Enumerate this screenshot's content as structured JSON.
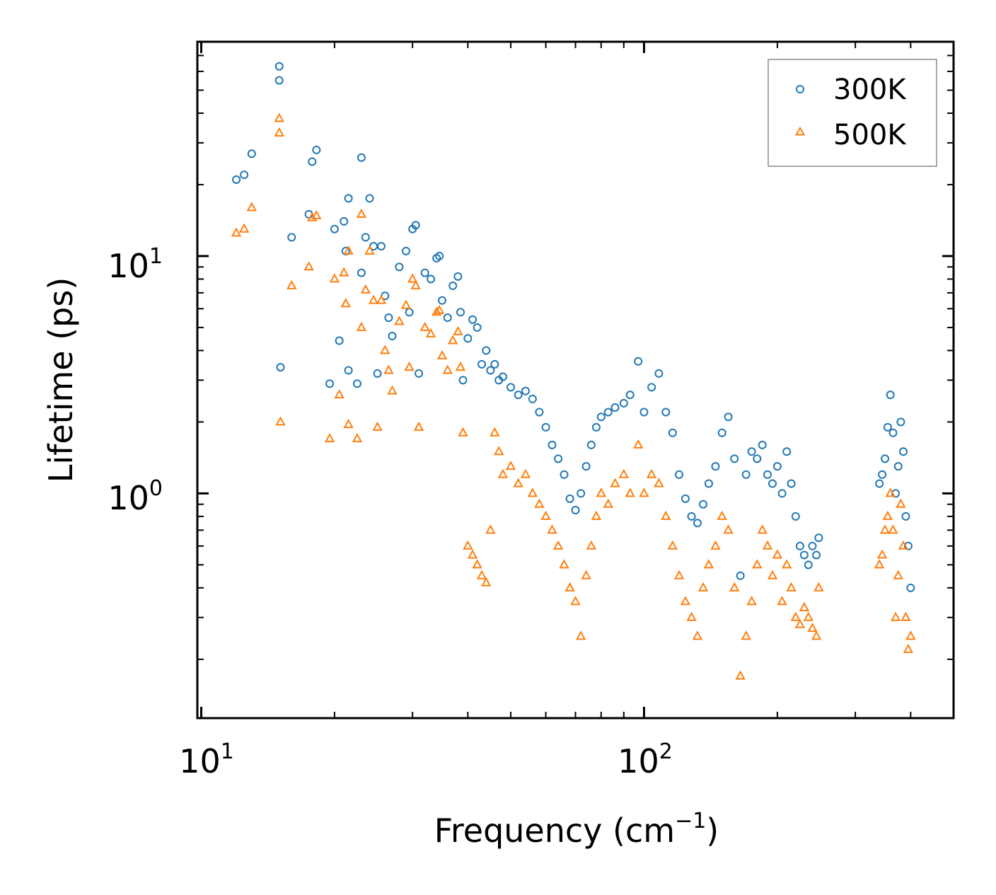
{
  "chart_data": {
    "type": "scatter",
    "title": "",
    "xlabel": "Frequency (cm",
    "xlabel_sup": "−1",
    "xlabel_end": ")",
    "ylabel": "Lifetime (ps)",
    "xscale": "log",
    "yscale": "log",
    "xlim": [
      9.8,
      500
    ],
    "ylim": [
      0.113,
      80
    ],
    "xticks": [
      {
        "base": "10",
        "exp": "1",
        "value": 10
      },
      {
        "base": "10",
        "exp": "2",
        "value": 100
      }
    ],
    "yticks": [
      {
        "base": "10",
        "exp": "0",
        "value": 1
      },
      {
        "base": "10",
        "exp": "1",
        "value": 10
      }
    ],
    "legend_position": "top-right",
    "series": [
      {
        "name": "300K",
        "marker": "circle",
        "color": "#1f77b4",
        "points": [
          [
            12.0,
            21
          ],
          [
            12.5,
            22
          ],
          [
            13.0,
            27
          ],
          [
            15.0,
            63
          ],
          [
            15.0,
            55
          ],
          [
            15.1,
            3.4
          ],
          [
            16.0,
            12
          ],
          [
            17.5,
            15
          ],
          [
            17.8,
            25
          ],
          [
            18.2,
            28
          ],
          [
            19.5,
            2.9
          ],
          [
            20.0,
            13
          ],
          [
            20.5,
            4.4
          ],
          [
            21.0,
            14
          ],
          [
            21.2,
            10.5
          ],
          [
            21.5,
            17.5
          ],
          [
            21.5,
            3.3
          ],
          [
            22.5,
            2.9
          ],
          [
            23.0,
            8.5
          ],
          [
            23.0,
            26
          ],
          [
            23.5,
            12
          ],
          [
            24.0,
            17.5
          ],
          [
            24.5,
            11
          ],
          [
            25.0,
            3.2
          ],
          [
            25.5,
            11
          ],
          [
            26.0,
            6.8
          ],
          [
            26.5,
            5.5
          ],
          [
            27.0,
            4.6
          ],
          [
            28.0,
            9
          ],
          [
            29.0,
            10.5
          ],
          [
            29.5,
            5.8
          ],
          [
            30.0,
            13
          ],
          [
            30.5,
            13.5
          ],
          [
            31.0,
            3.2
          ],
          [
            32.0,
            8.5
          ],
          [
            33.0,
            8
          ],
          [
            34.0,
            9.8
          ],
          [
            34.5,
            10
          ],
          [
            35.0,
            6.5
          ],
          [
            36.0,
            5.5
          ],
          [
            37.0,
            7.5
          ],
          [
            38.0,
            8.2
          ],
          [
            38.5,
            5.8
          ],
          [
            39.0,
            3.0
          ],
          [
            40.0,
            4.5
          ],
          [
            41.0,
            5.4
          ],
          [
            42.0,
            5.0
          ],
          [
            43.0,
            3.5
          ],
          [
            44.0,
            4.0
          ],
          [
            45.0,
            3.3
          ],
          [
            46.0,
            3.5
          ],
          [
            47.0,
            3.0
          ],
          [
            48.0,
            3.1
          ],
          [
            50.0,
            2.8
          ],
          [
            52.0,
            2.6
          ],
          [
            54.0,
            2.7
          ],
          [
            56.0,
            2.5
          ],
          [
            58.0,
            2.2
          ],
          [
            60.0,
            1.9
          ],
          [
            62.0,
            1.6
          ],
          [
            64.0,
            1.4
          ],
          [
            66.0,
            1.2
          ],
          [
            68.0,
            0.95
          ],
          [
            70.0,
            0.85
          ],
          [
            72.0,
            1.0
          ],
          [
            74.0,
            1.3
          ],
          [
            76.0,
            1.6
          ],
          [
            78.0,
            1.9
          ],
          [
            80.0,
            2.1
          ],
          [
            83.0,
            2.2
          ],
          [
            86.0,
            2.3
          ],
          [
            90.0,
            2.4
          ],
          [
            93.0,
            2.6
          ],
          [
            97.0,
            3.6
          ],
          [
            100.0,
            2.2
          ],
          [
            104.0,
            2.8
          ],
          [
            108.0,
            3.2
          ],
          [
            112.0,
            2.2
          ],
          [
            116.0,
            1.8
          ],
          [
            120.0,
            1.2
          ],
          [
            124.0,
            0.95
          ],
          [
            128.0,
            0.8
          ],
          [
            132.0,
            0.75
          ],
          [
            136.0,
            0.9
          ],
          [
            140.0,
            1.1
          ],
          [
            145.0,
            1.3
          ],
          [
            150.0,
            1.8
          ],
          [
            155.0,
            2.1
          ],
          [
            160.0,
            1.4
          ],
          [
            165.0,
            0.45
          ],
          [
            170.0,
            1.2
          ],
          [
            175.0,
            1.5
          ],
          [
            180.0,
            1.4
          ],
          [
            185.0,
            1.6
          ],
          [
            190.0,
            1.2
          ],
          [
            195.0,
            1.1
          ],
          [
            200.0,
            1.3
          ],
          [
            205.0,
            1.0
          ],
          [
            210.0,
            1.5
          ],
          [
            215.0,
            1.1
          ],
          [
            220.0,
            0.8
          ],
          [
            225.0,
            0.6
          ],
          [
            230.0,
            0.55
          ],
          [
            235.0,
            0.5
          ],
          [
            240.0,
            0.6
          ],
          [
            245.0,
            0.55
          ],
          [
            248.0,
            0.65
          ],
          [
            340.0,
            1.1
          ],
          [
            345.0,
            1.2
          ],
          [
            350.0,
            1.4
          ],
          [
            355.0,
            1.9
          ],
          [
            360.0,
            2.6
          ],
          [
            365.0,
            1.8
          ],
          [
            370.0,
            1.0
          ],
          [
            375.0,
            1.3
          ],
          [
            380.0,
            2.0
          ],
          [
            385.0,
            1.5
          ],
          [
            390.0,
            0.8
          ],
          [
            395.0,
            0.6
          ],
          [
            400.0,
            0.4
          ]
        ]
      },
      {
        "name": "500K",
        "marker": "triangle",
        "color": "#ff7f0e",
        "points": [
          [
            12.0,
            12.5
          ],
          [
            12.5,
            13
          ],
          [
            13.0,
            16
          ],
          [
            15.0,
            38
          ],
          [
            15.0,
            33
          ],
          [
            15.1,
            2.0
          ],
          [
            16.0,
            7.5
          ],
          [
            17.5,
            9
          ],
          [
            17.8,
            14.5
          ],
          [
            18.2,
            14.8
          ],
          [
            19.5,
            1.7
          ],
          [
            20.0,
            8
          ],
          [
            20.5,
            2.6
          ],
          [
            21.0,
            8.5
          ],
          [
            21.2,
            6.3
          ],
          [
            21.5,
            10.5
          ],
          [
            21.5,
            1.95
          ],
          [
            22.5,
            1.7
          ],
          [
            23.0,
            5.0
          ],
          [
            23.0,
            15
          ],
          [
            23.5,
            7.2
          ],
          [
            24.0,
            10.5
          ],
          [
            24.5,
            6.5
          ],
          [
            25.0,
            1.9
          ],
          [
            25.5,
            6.5
          ],
          [
            26.0,
            4.0
          ],
          [
            26.5,
            3.3
          ],
          [
            27.0,
            2.7
          ],
          [
            28.0,
            5.3
          ],
          [
            29.0,
            6.2
          ],
          [
            29.5,
            3.4
          ],
          [
            30.0,
            8
          ],
          [
            30.5,
            7.5
          ],
          [
            31.0,
            1.9
          ],
          [
            32.0,
            5.0
          ],
          [
            33.0,
            4.7
          ],
          [
            34.0,
            5.8
          ],
          [
            34.5,
            5.9
          ],
          [
            35.0,
            3.8
          ],
          [
            36.0,
            3.3
          ],
          [
            37.0,
            4.4
          ],
          [
            38.0,
            4.8
          ],
          [
            38.5,
            3.4
          ],
          [
            39.0,
            1.8
          ],
          [
            40.0,
            0.6
          ],
          [
            41.0,
            0.55
          ],
          [
            42.0,
            0.5
          ],
          [
            43.0,
            0.45
          ],
          [
            44.0,
            0.42
          ],
          [
            45.0,
            0.7
          ],
          [
            46.0,
            1.8
          ],
          [
            47.0,
            1.5
          ],
          [
            48.0,
            1.2
          ],
          [
            50.0,
            1.3
          ],
          [
            52.0,
            1.1
          ],
          [
            54.0,
            1.2
          ],
          [
            56.0,
            1.0
          ],
          [
            58.0,
            0.9
          ],
          [
            60.0,
            0.8
          ],
          [
            62.0,
            0.7
          ],
          [
            64.0,
            0.6
          ],
          [
            66.0,
            0.5
          ],
          [
            68.0,
            0.4
          ],
          [
            70.0,
            0.35
          ],
          [
            72.0,
            0.25
          ],
          [
            74.0,
            0.45
          ],
          [
            76.0,
            0.6
          ],
          [
            78.0,
            0.8
          ],
          [
            80.0,
            1.0
          ],
          [
            83.0,
            0.9
          ],
          [
            86.0,
            1.1
          ],
          [
            90.0,
            1.2
          ],
          [
            93.0,
            1.0
          ],
          [
            97.0,
            1.6
          ],
          [
            100.0,
            1.0
          ],
          [
            104.0,
            1.2
          ],
          [
            108.0,
            1.1
          ],
          [
            112.0,
            0.8
          ],
          [
            116.0,
            0.6
          ],
          [
            120.0,
            0.45
          ],
          [
            124.0,
            0.35
          ],
          [
            128.0,
            0.3
          ],
          [
            132.0,
            0.25
          ],
          [
            136.0,
            0.4
          ],
          [
            140.0,
            0.5
          ],
          [
            145.0,
            0.6
          ],
          [
            150.0,
            0.8
          ],
          [
            155.0,
            0.7
          ],
          [
            160.0,
            0.4
          ],
          [
            165.0,
            0.17
          ],
          [
            170.0,
            0.25
          ],
          [
            175.0,
            0.35
          ],
          [
            180.0,
            0.5
          ],
          [
            185.0,
            0.7
          ],
          [
            190.0,
            0.6
          ],
          [
            195.0,
            0.45
          ],
          [
            200.0,
            0.55
          ],
          [
            205.0,
            0.35
          ],
          [
            210.0,
            0.5
          ],
          [
            215.0,
            0.4
          ],
          [
            220.0,
            0.3
          ],
          [
            225.0,
            0.28
          ],
          [
            230.0,
            0.33
          ],
          [
            235.0,
            0.3
          ],
          [
            240.0,
            0.27
          ],
          [
            245.0,
            0.25
          ],
          [
            248.0,
            0.4
          ],
          [
            340.0,
            0.5
          ],
          [
            345.0,
            0.55
          ],
          [
            350.0,
            0.7
          ],
          [
            355.0,
            0.8
          ],
          [
            360.0,
            1.0
          ],
          [
            365.0,
            0.7
          ],
          [
            370.0,
            0.3
          ],
          [
            375.0,
            0.45
          ],
          [
            380.0,
            0.9
          ],
          [
            385.0,
            0.6
          ],
          [
            390.0,
            0.3
          ],
          [
            395.0,
            0.22
          ],
          [
            400.0,
            0.25
          ]
        ]
      }
    ]
  }
}
